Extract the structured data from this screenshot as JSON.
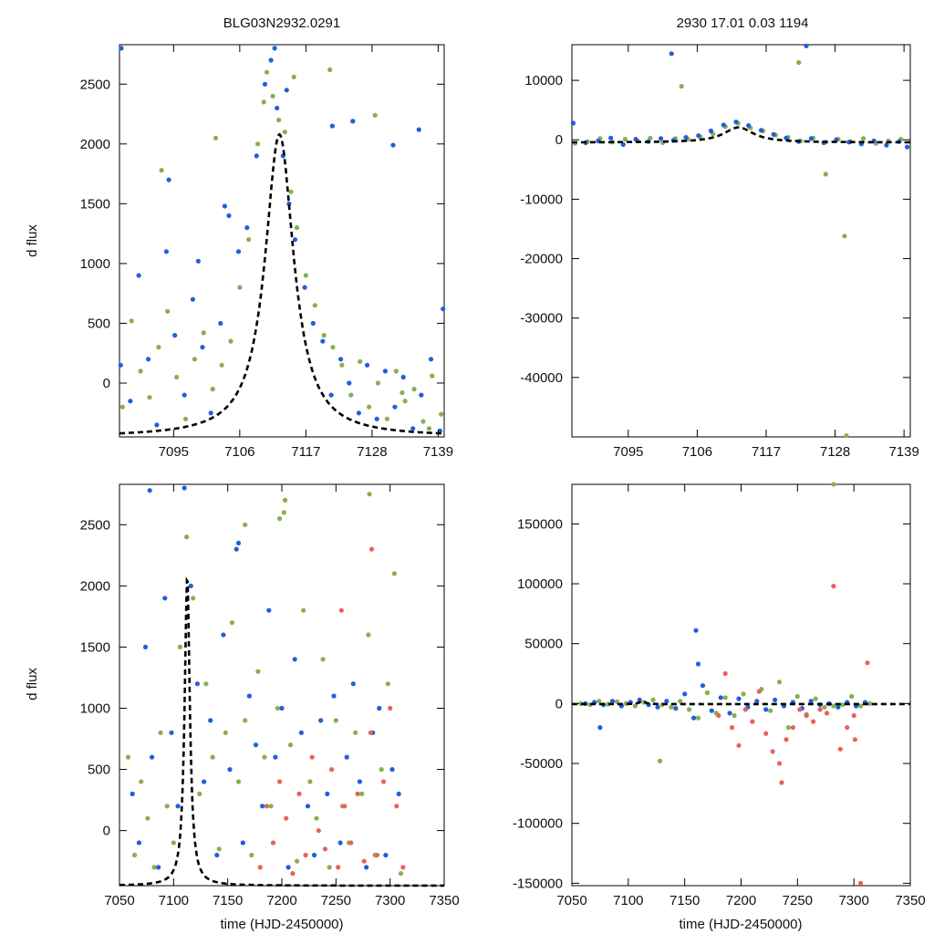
{
  "chart_data": [
    {
      "type": "scatter",
      "title": "BLG03N2932.0291",
      "xlabel": "",
      "ylabel": "d flux",
      "xlim": [
        7086,
        7140
      ],
      "ylim": [
        -450,
        2830
      ],
      "xticks": [
        7095,
        7106,
        7117,
        7128,
        7139
      ],
      "yticks": [
        0,
        500,
        1000,
        1500,
        2000,
        2500
      ],
      "colors": {
        "blue": "#1f5fdc",
        "green": "#86b04e",
        "red": "#e8625e",
        "model": "#000000"
      },
      "model": {
        "t0": 7112.6,
        "peak": 2080,
        "baseline": -450,
        "tE": 2.9
      },
      "series": [
        {
          "name": "green",
          "color": "#86b04e",
          "x": [
            7086.5,
            7088,
            7089.5,
            7091,
            7092.5,
            7094,
            7095.5,
            7097,
            7098.5,
            7100,
            7101.5,
            7103,
            7104.5,
            7106,
            7107.5,
            7109,
            7110.5,
            7111.5,
            7112.5,
            7113.5,
            7114.5,
            7115.5,
            7117,
            7118.5,
            7120,
            7121.5,
            7123,
            7124.5,
            7126,
            7127.5,
            7129,
            7130.5,
            7132,
            7133.5,
            7135,
            7136.5,
            7138,
            7139.5,
            7093,
            7102,
            7110,
            7115,
            7121,
            7128.5,
            7133,
            7137.5
          ],
          "y": [
            -200,
            520,
            100,
            -120,
            300,
            600,
            50,
            -300,
            200,
            420,
            -50,
            150,
            350,
            800,
            1200,
            2000,
            2600,
            2400,
            2200,
            2100,
            1600,
            1300,
            900,
            650,
            400,
            300,
            150,
            -100,
            180,
            -200,
            0,
            -300,
            100,
            -150,
            -50,
            -320,
            60,
            -260,
            1780,
            2050,
            2350,
            2560,
            2620,
            2240,
            -80,
            -380
          ]
        },
        {
          "name": "blue",
          "color": "#1f5fdc",
          "x": [
            7086.3,
            7087.8,
            7089.2,
            7090.8,
            7092.2,
            7093.8,
            7095.2,
            7096.8,
            7098.2,
            7099.8,
            7101.2,
            7102.8,
            7104.2,
            7105.8,
            7107.2,
            7108.8,
            7110.2,
            7111.2,
            7112.2,
            7113.2,
            7114.2,
            7115.2,
            7116.8,
            7118.2,
            7119.8,
            7121.2,
            7122.8,
            7124.2,
            7125.8,
            7127.2,
            7128.8,
            7130.2,
            7131.8,
            7133.2,
            7134.8,
            7136.2,
            7137.8,
            7139.3,
            7086.2,
            7094.2,
            7099.1,
            7103.5,
            7111.8,
            7113.8,
            7121.4,
            7124.8,
            7131.5,
            7135.8,
            7139.8
          ],
          "y": [
            2800,
            -150,
            900,
            200,
            -350,
            1100,
            400,
            -100,
            700,
            300,
            -250,
            500,
            1400,
            1100,
            1300,
            1900,
            2500,
            2700,
            2300,
            1900,
            1500,
            1200,
            800,
            500,
            350,
            -100,
            200,
            0,
            -250,
            150,
            -300,
            100,
            -200,
            50,
            -380,
            -100,
            200,
            -400,
            150,
            1700,
            1020,
            1480,
            2800,
            2450,
            2150,
            2190,
            1990,
            2120,
            620
          ]
        }
      ]
    },
    {
      "type": "scatter",
      "title": "2930   17.01   0.03   1194",
      "xlabel": "",
      "ylabel": "",
      "xlim": [
        7086,
        7140
      ],
      "ylim": [
        -50000,
        16000
      ],
      "xticks": [
        7095,
        7106,
        7117,
        7128,
        7139
      ],
      "yticks": [
        -40000,
        -30000,
        -20000,
        -10000,
        0,
        10000
      ],
      "model": {
        "t0": 7112.6,
        "peak": 2080,
        "baseline": -450,
        "tE": 2.9
      },
      "series": [
        {
          "name": "green",
          "color": "#86b04e",
          "x": [
            7086.5,
            7088.5,
            7090.5,
            7092.5,
            7094.5,
            7096.5,
            7098.5,
            7100.5,
            7102.5,
            7104.5,
            7106.5,
            7108.5,
            7110.5,
            7112.5,
            7114.5,
            7116.5,
            7118.5,
            7120.5,
            7122.5,
            7124.5,
            7126.5,
            7128.5,
            7130.5,
            7132.5,
            7134.5,
            7136.5,
            7138.5,
            7103.5,
            7122.2,
            7126.5,
            7129.5,
            7129.8
          ],
          "y": [
            -600,
            -300,
            200,
            -400,
            100,
            -200,
            300,
            -500,
            200,
            100,
            500,
            1000,
            2200,
            2800,
            2000,
            1500,
            800,
            400,
            -200,
            300,
            -400,
            100,
            -300,
            200,
            -600,
            -200,
            100,
            9000,
            13000,
            -5800,
            -16200,
            -49800
          ]
        },
        {
          "name": "blue",
          "color": "#1f5fdc",
          "x": [
            7086.2,
            7088.2,
            7090.2,
            7092.2,
            7094.2,
            7096.2,
            7098.2,
            7100.2,
            7102.2,
            7104.2,
            7106.2,
            7108.2,
            7110.2,
            7112.2,
            7114.2,
            7116.2,
            7118.2,
            7120.2,
            7122.2,
            7124.2,
            7126.2,
            7128.2,
            7130.2,
            7132.2,
            7134.2,
            7136.2,
            7138.2,
            7139.5,
            7101.9,
            7123.4
          ],
          "y": [
            2800,
            -500,
            -200,
            300,
            -800,
            100,
            -300,
            200,
            -100,
            400,
            700,
            1500,
            2500,
            3000,
            2400,
            1600,
            900,
            300,
            -300,
            200,
            -500,
            0,
            -400,
            -700,
            -200,
            -900,
            -300,
            -1200,
            14500,
            15800
          ]
        }
      ]
    },
    {
      "type": "scatter",
      "title": "",
      "xlabel": "time (HJD-2450000)",
      "ylabel": "d flux",
      "xlim": [
        7050,
        7350
      ],
      "ylim": [
        -450,
        2830
      ],
      "xticks": [
        7050,
        7100,
        7150,
        7200,
        7250,
        7300,
        7350
      ],
      "yticks": [
        0,
        500,
        1000,
        1500,
        2000,
        2500
      ],
      "model": {
        "t0": 7112.6,
        "peak": 2080,
        "baseline": -450,
        "tE": 2.9
      },
      "series": [
        {
          "name": "green",
          "color": "#86b04e",
          "x": [
            7058,
            7064,
            7070,
            7076,
            7082,
            7088,
            7094,
            7100,
            7106,
            7112,
            7118,
            7124,
            7130,
            7136,
            7142,
            7148,
            7154,
            7160,
            7166,
            7172,
            7178,
            7184,
            7190,
            7196,
            7202,
            7208,
            7214,
            7220,
            7226,
            7232,
            7238,
            7244,
            7250,
            7256,
            7262,
            7268,
            7274,
            7280,
            7286,
            7292,
            7298,
            7304,
            7310,
            7198,
            7203,
            7166,
            7281
          ],
          "y": [
            600,
            -200,
            400,
            100,
            -300,
            800,
            200,
            -100,
            1500,
            2400,
            1900,
            300,
            1200,
            600,
            -150,
            800,
            1700,
            400,
            900,
            -200,
            1300,
            600,
            200,
            1000,
            2600,
            700,
            -250,
            1800,
            400,
            100,
            1400,
            -300,
            900,
            200,
            -100,
            800,
            300,
            1600,
            -200,
            500,
            1200,
            2100,
            -350,
            2550,
            2700,
            2500,
            2750
          ]
        },
        {
          "name": "blue",
          "color": "#1f5fdc",
          "x": [
            7062,
            7068,
            7074,
            7080,
            7086,
            7092,
            7098,
            7104,
            7110,
            7116,
            7122,
            7128,
            7134,
            7140,
            7146,
            7152,
            7158,
            7164,
            7170,
            7176,
            7182,
            7188,
            7194,
            7200,
            7206,
            7212,
            7218,
            7224,
            7230,
            7236,
            7242,
            7248,
            7254,
            7260,
            7266,
            7272,
            7278,
            7284,
            7290,
            7296,
            7302,
            7308,
            7078,
            7160
          ],
          "y": [
            300,
            -100,
            1500,
            600,
            -300,
            1900,
            800,
            200,
            2800,
            2000,
            1200,
            400,
            900,
            -200,
            1600,
            500,
            2300,
            -100,
            1100,
            700,
            200,
            1800,
            600,
            1000,
            -300,
            1400,
            800,
            200,
            -200,
            900,
            300,
            1100,
            -100,
            600,
            1200,
            400,
            -300,
            800,
            1000,
            -200,
            500,
            300,
            2780,
            2350
          ]
        },
        {
          "name": "red",
          "color": "#e8625e",
          "x": [
            7180,
            7186,
            7192,
            7198,
            7204,
            7210,
            7216,
            7222,
            7228,
            7234,
            7240,
            7246,
            7252,
            7258,
            7264,
            7270,
            7276,
            7282,
            7288,
            7294,
            7300,
            7306,
            7312,
            7255,
            7283
          ],
          "y": [
            -300,
            200,
            -100,
            400,
            100,
            -350,
            300,
            -200,
            600,
            0,
            -150,
            500,
            -300,
            200,
            -100,
            300,
            -250,
            800,
            -200,
            400,
            1000,
            200,
            -300,
            1800,
            2300
          ]
        }
      ]
    },
    {
      "type": "scatter",
      "title": "",
      "xlabel": "time (HJD-2450000)",
      "ylabel": "",
      "xlim": [
        7050,
        7350
      ],
      "ylim": [
        -152000,
        183000
      ],
      "xticks": [
        7050,
        7100,
        7150,
        7200,
        7250,
        7300,
        7350
      ],
      "yticks": [
        -150000,
        -100000,
        -50000,
        0,
        50000,
        100000,
        150000
      ],
      "model": {
        "t0": 7112.6,
        "peak": 2080,
        "baseline": -450,
        "tE": 2.9
      },
      "series": [
        {
          "name": "green",
          "color": "#86b04e",
          "x": [
            7058,
            7066,
            7074,
            7082,
            7090,
            7098,
            7106,
            7114,
            7122,
            7130,
            7138,
            7146,
            7154,
            7162,
            7170,
            7178,
            7186,
            7194,
            7202,
            7210,
            7218,
            7226,
            7234,
            7242,
            7250,
            7258,
            7266,
            7274,
            7282,
            7290,
            7298,
            7306,
            7314,
            7128,
            7282
          ],
          "y": [
            0,
            -1000,
            2000,
            -500,
            1500,
            0,
            -2000,
            1000,
            3000,
            -1000,
            -3000,
            2000,
            -5000,
            -12000,
            9000,
            -8000,
            5000,
            -10000,
            8000,
            -15000,
            12000,
            -6000,
            18000,
            -20000,
            6000,
            -9000,
            4000,
            -3000,
            -2000,
            -1000,
            6000,
            -2000,
            0,
            -48000,
            183000
          ]
        },
        {
          "name": "blue",
          "color": "#1f5fdc",
          "x": [
            7062,
            7070,
            7078,
            7086,
            7094,
            7102,
            7110,
            7118,
            7126,
            7134,
            7142,
            7150,
            7158,
            7166,
            7174,
            7182,
            7190,
            7198,
            7206,
            7214,
            7222,
            7230,
            7238,
            7246,
            7254,
            7262,
            7270,
            7278,
            7286,
            7294,
            7302,
            7310,
            7160,
            7162,
            7075
          ],
          "y": [
            0,
            1000,
            -1000,
            2000,
            -2000,
            1000,
            3000,
            -1000,
            -3000,
            2000,
            -4000,
            8000,
            -12000,
            15000,
            -6000,
            5000,
            -8000,
            4000,
            -3000,
            2000,
            -5000,
            3000,
            -2000,
            1000,
            -4000,
            2000,
            -1000,
            0,
            -3000,
            1000,
            -2000,
            1000,
            61000,
            33000,
            -20000
          ]
        },
        {
          "name": "red",
          "color": "#e8625e",
          "x": [
            7180,
            7186,
            7192,
            7198,
            7204,
            7210,
            7216,
            7222,
            7228,
            7234,
            7240,
            7246,
            7252,
            7258,
            7264,
            7270,
            7276,
            7282,
            7288,
            7294,
            7300,
            7306,
            7312,
            7236,
            7301
          ],
          "y": [
            -10000,
            25000,
            -20000,
            -35000,
            -5000,
            -15000,
            10000,
            -25000,
            -40000,
            -50000,
            -30000,
            -20000,
            -5000,
            -10000,
            -15000,
            -5000,
            -8000,
            98000,
            -38000,
            -20000,
            -10000,
            -150000,
            34000,
            -66000,
            -30000
          ]
        }
      ]
    }
  ]
}
